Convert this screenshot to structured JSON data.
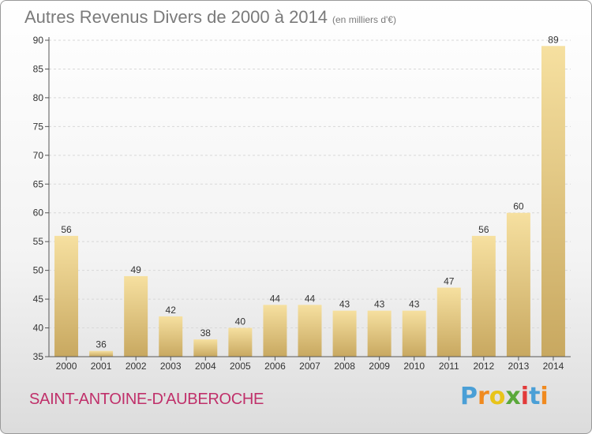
{
  "title": "Autres Revenus Divers de 2000 à 2014",
  "unit_note": "(en milliers d'€)",
  "commune": "SAINT-ANTOINE-D'AUBEROCHE",
  "logo": {
    "letters": [
      "P",
      "r",
      "o",
      "x",
      "i",
      "t",
      "i"
    ],
    "colors": [
      "#4a9fd6",
      "#f08a1f",
      "#e8c41a",
      "#5aa83a",
      "#e23a3a",
      "#4a9fd6",
      "#f08a1f"
    ]
  },
  "colors": {
    "bar_light": "#f6e0a0",
    "bar_dark": "#c8a860",
    "axis": "#555555",
    "grid": "#d8d8d8",
    "text": "#333333"
  },
  "chart_data": {
    "type": "bar",
    "categories": [
      "2000",
      "2001",
      "2002",
      "2003",
      "2004",
      "2005",
      "2006",
      "2007",
      "2008",
      "2009",
      "2010",
      "2011",
      "2012",
      "2013",
      "2014"
    ],
    "values": [
      56,
      36,
      49,
      42,
      38,
      40,
      44,
      44,
      43,
      43,
      43,
      47,
      56,
      60,
      89
    ],
    "ylim": [
      35,
      90
    ],
    "yticks": [
      35,
      40,
      45,
      50,
      55,
      60,
      65,
      70,
      75,
      80,
      85,
      90
    ],
    "grid": true
  }
}
